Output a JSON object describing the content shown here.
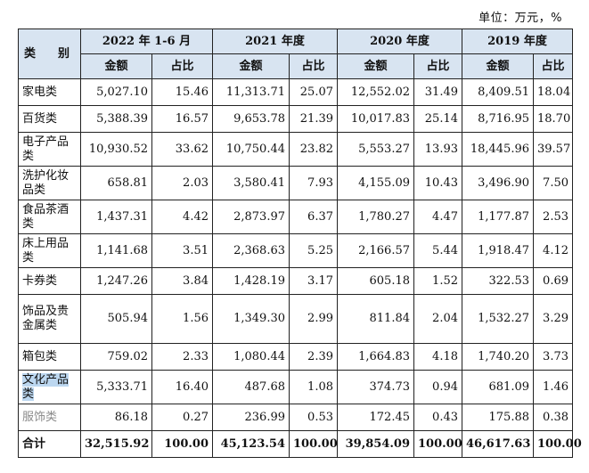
{
  "unit_label": "单位：万元，%",
  "header": {
    "category": "类　别",
    "periods": [
      "2022 年 1-6 月",
      "2021 年度",
      "2020 年度",
      "2019 年度"
    ],
    "sub_amount": "金额",
    "sub_ratio": "占比"
  },
  "rows": [
    {
      "cat": "家电类",
      "v": [
        "5,027.10",
        "15.46",
        "11,313.71",
        "25.07",
        "12,552.02",
        "31.49",
        "8,409.51",
        "18.04"
      ]
    },
    {
      "cat": "百货类",
      "v": [
        "5,388.39",
        "16.57",
        "9,653.78",
        "21.39",
        "10,017.83",
        "25.14",
        "8,716.95",
        "18.70"
      ]
    },
    {
      "cat": "电子产品类",
      "v": [
        "10,930.52",
        "33.62",
        "10,750.44",
        "23.82",
        "5,553.27",
        "13.93",
        "18,445.96",
        "39.57"
      ]
    },
    {
      "cat": "洗护化妆品类",
      "v": [
        "658.81",
        "2.03",
        "3,580.41",
        "7.93",
        "4,155.09",
        "10.43",
        "3,496.90",
        "7.50"
      ]
    },
    {
      "cat": "食品茶酒类",
      "v": [
        "1,437.31",
        "4.42",
        "2,873.97",
        "6.37",
        "1,780.27",
        "4.47",
        "1,177.87",
        "2.53"
      ]
    },
    {
      "cat": "床上用品类",
      "v": [
        "1,141.68",
        "3.51",
        "2,368.63",
        "5.25",
        "2,166.57",
        "5.44",
        "1,918.47",
        "4.12"
      ]
    },
    {
      "cat": "卡券类",
      "v": [
        "1,247.26",
        "3.84",
        "1,428.19",
        "3.17",
        "605.18",
        "1.52",
        "322.53",
        "0.69"
      ]
    },
    {
      "cat": "饰品及贵金属类",
      "v": [
        "505.94",
        "1.56",
        "1,349.30",
        "2.99",
        "811.84",
        "2.04",
        "1,532.27",
        "3.29"
      ]
    },
    {
      "cat": "箱包类",
      "v": [
        "759.02",
        "2.33",
        "1,080.44",
        "2.39",
        "1,664.83",
        "4.18",
        "1,740.20",
        "3.73"
      ]
    },
    {
      "cat": "文化产品类",
      "v": [
        "5,333.71",
        "16.40",
        "487.68",
        "1.08",
        "374.73",
        "0.94",
        "681.09",
        "1.46"
      ]
    },
    {
      "cat": "服饰类",
      "v": [
        "86.18",
        "0.27",
        "236.99",
        "0.53",
        "172.45",
        "0.43",
        "175.88",
        "0.38"
      ]
    }
  ],
  "total": {
    "cat": "合计",
    "v": [
      "32,515.92",
      "100.00",
      "45,123.54",
      "100.00",
      "39,854.09",
      "100.00",
      "46,617.63",
      "100.00"
    ]
  }
}
